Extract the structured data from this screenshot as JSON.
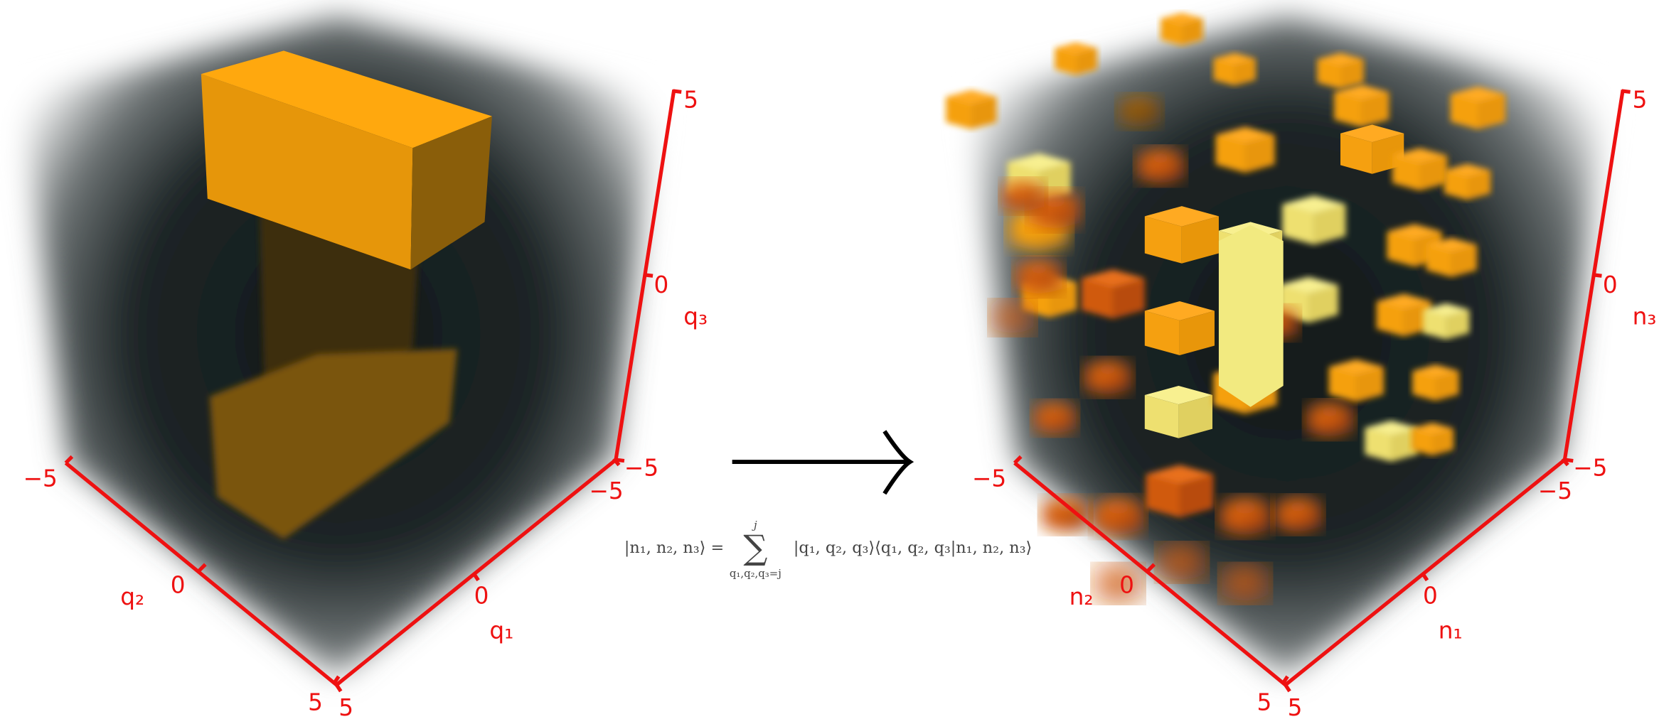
{
  "panels": [
    {
      "axes": {
        "front_left": {
          "label": "q₂",
          "ticks": [
            "−5",
            "0",
            "5"
          ]
        },
        "front_right": {
          "label": "q₁",
          "ticks": [
            "5",
            "0",
            "−5"
          ]
        },
        "vertical": {
          "label": "q₃",
          "ticks": [
            "−5",
            "0",
            "5"
          ]
        }
      }
    },
    {
      "axes": {
        "front_left": {
          "label": "n₂",
          "ticks": [
            "−5",
            "0",
            "5"
          ]
        },
        "front_right": {
          "label": "n₁",
          "ticks": [
            "5",
            "0",
            "−5"
          ]
        },
        "vertical": {
          "label": "n₃",
          "ticks": [
            "−5",
            "0",
            "5"
          ]
        }
      }
    }
  ],
  "formula": {
    "lhs": "|n₁, n₂, n₃⟩ =",
    "sum": "∑",
    "upper": "j",
    "lower": "q₁,q₂,q₃=j",
    "rhs": "|q₁, q₂, q₃⟩⟨q₁, q₂, q₃|n₁, n₂, n₃⟩"
  }
}
